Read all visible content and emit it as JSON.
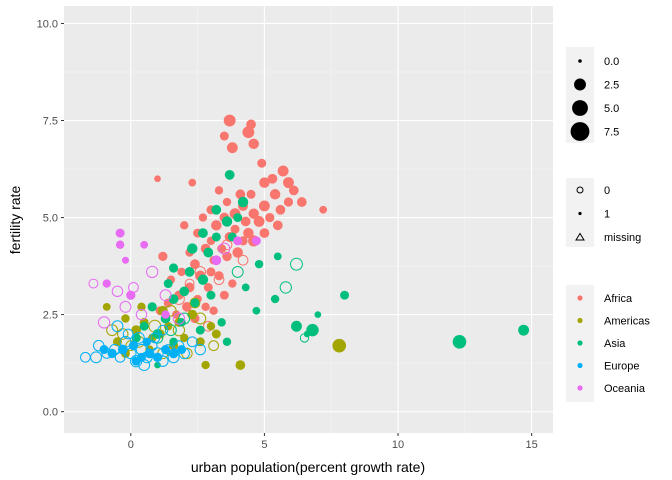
{
  "chart_data": {
    "type": "scatter",
    "title": "",
    "xlabel": "urban population(percent growth rate)",
    "ylabel": "fertility rate",
    "xlim": [
      -2.5,
      15.8
    ],
    "ylim": [
      -0.55,
      10.45
    ],
    "x_ticks": [
      0,
      5,
      10,
      15
    ],
    "x_tick_labels": [
      "0",
      "5",
      "10",
      "15"
    ],
    "y_ticks": [
      0,
      2.5,
      5,
      7.5,
      10
    ],
    "y_tick_labels": [
      "0.0",
      "2.5",
      "5.0",
      "7.5",
      "10.0"
    ],
    "grid": true,
    "legend_position": "right",
    "size_legend": {
      "breaks": [
        0,
        2.5,
        5,
        7.5
      ],
      "labels": [
        "0.0",
        "2.5",
        "5.0",
        "7.5"
      ]
    },
    "shape_legend": {
      "entries": [
        {
          "label": "0",
          "shape": "open-circle"
        },
        {
          "label": "1",
          "shape": "filled-circle"
        },
        {
          "label": "missing",
          "shape": "open-triangle"
        }
      ]
    },
    "color_legend": {
      "entries": [
        {
          "label": "Africa",
          "color": "#F8766D"
        },
        {
          "label": "Americas",
          "color": "#A3A500"
        },
        {
          "label": "Asia",
          "color": "#00BF7D"
        },
        {
          "label": "Europe",
          "color": "#00B0F6"
        },
        {
          "label": "Oceania",
          "color": "#E76BF3"
        }
      ]
    },
    "points_columns": [
      "x",
      "y",
      "region_index",
      "shape_index",
      "size_value"
    ],
    "points": [
      [
        3.7,
        7.5,
        0,
        1,
        2.5
      ],
      [
        4.5,
        7.4,
        0,
        1,
        1.5
      ],
      [
        4.4,
        7.2,
        0,
        1,
        2.5
      ],
      [
        3.5,
        7.1,
        0,
        1,
        1.2
      ],
      [
        3.8,
        6.8,
        0,
        1,
        2.0
      ],
      [
        4.6,
        6.9,
        0,
        1,
        1.8
      ],
      [
        4.9,
        6.4,
        0,
        1,
        1.2
      ],
      [
        5.3,
        6.0,
        0,
        1,
        1.5
      ],
      [
        5.7,
        6.2,
        0,
        1,
        2.0
      ],
      [
        6.1,
        5.7,
        0,
        1,
        1.5
      ],
      [
        5.0,
        5.9,
        0,
        1,
        1.8
      ],
      [
        2.3,
        5.9,
        0,
        1,
        0.8
      ],
      [
        3.3,
        5.7,
        0,
        1,
        1.0
      ],
      [
        4.1,
        5.6,
        0,
        1,
        1.5
      ],
      [
        4.5,
        5.6,
        0,
        1,
        1.2
      ],
      [
        5.4,
        5.6,
        0,
        1,
        1.8
      ],
      [
        5.9,
        5.4,
        0,
        1,
        1.3
      ],
      [
        3.6,
        5.4,
        0,
        1,
        1.0
      ],
      [
        4.2,
        5.3,
        0,
        1,
        1.6
      ],
      [
        5.0,
        5.3,
        0,
        1,
        2.0
      ],
      [
        5.6,
        5.2,
        0,
        1,
        1.5
      ],
      [
        3.0,
        5.2,
        0,
        1,
        1.2
      ],
      [
        3.9,
        5.1,
        0,
        1,
        2.0
      ],
      [
        4.6,
        5.1,
        0,
        1,
        1.8
      ],
      [
        5.2,
        5.0,
        0,
        1,
        1.3
      ],
      [
        2.7,
        5.0,
        0,
        1,
        1.0
      ],
      [
        3.5,
        5.0,
        0,
        1,
        1.5
      ],
      [
        4.3,
        4.9,
        0,
        1,
        1.5
      ],
      [
        4.8,
        4.9,
        0,
        1,
        2.0
      ],
      [
        5.5,
        4.8,
        0,
        1,
        1.5
      ],
      [
        2.0,
        4.8,
        0,
        1,
        1.0
      ],
      [
        3.2,
        4.8,
        0,
        1,
        1.8
      ],
      [
        3.9,
        4.7,
        0,
        1,
        1.2
      ],
      [
        4.4,
        4.6,
        0,
        1,
        1.8
      ],
      [
        5.0,
        4.6,
        0,
        1,
        1.5
      ],
      [
        2.5,
        4.6,
        0,
        1,
        1.2
      ],
      [
        3.7,
        4.5,
        0,
        1,
        1.6
      ],
      [
        4.2,
        4.4,
        0,
        1,
        1.3
      ],
      [
        3.0,
        4.4,
        0,
        1,
        1.0
      ],
      [
        4.6,
        4.4,
        0,
        1,
        2.2
      ],
      [
        2.8,
        4.2,
        0,
        1,
        1.5
      ],
      [
        3.4,
        4.2,
        0,
        1,
        1.2
      ],
      [
        4.0,
        4.1,
        0,
        1,
        1.8
      ],
      [
        2.2,
        4.1,
        0,
        1,
        1.0
      ],
      [
        3.6,
        4.0,
        0,
        1,
        1.4
      ],
      [
        3.1,
        3.9,
        0,
        1,
        1.0
      ],
      [
        1.2,
        4.0,
        0,
        1,
        1.3
      ],
      [
        2.4,
        3.8,
        0,
        1,
        1.5
      ],
      [
        3.0,
        3.6,
        0,
        1,
        1.2
      ],
      [
        1.9,
        3.6,
        0,
        1,
        1.0
      ],
      [
        2.6,
        3.5,
        0,
        1,
        1.8
      ],
      [
        3.3,
        3.5,
        0,
        1,
        1.3
      ],
      [
        1.5,
        3.4,
        0,
        1,
        1.0
      ],
      [
        2.2,
        3.2,
        0,
        1,
        1.5
      ],
      [
        2.9,
        3.2,
        0,
        1,
        1.2
      ],
      [
        1.8,
        3.0,
        0,
        1,
        1.3
      ],
      [
        2.5,
        2.9,
        0,
        1,
        1.0
      ],
      [
        1.4,
        2.8,
        0,
        1,
        1.2
      ],
      [
        2.1,
        2.7,
        0,
        1,
        1.5
      ],
      [
        2.8,
        2.7,
        0,
        1,
        1.0
      ],
      [
        1.1,
        2.6,
        0,
        1,
        1.2
      ],
      [
        1.7,
        2.5,
        0,
        1,
        1.0
      ],
      [
        2.4,
        2.4,
        0,
        1,
        1.3
      ],
      [
        3.1,
        2.6,
        0,
        1,
        1.0
      ],
      [
        5.9,
        5.9,
        0,
        1,
        2.0
      ],
      [
        6.4,
        5.4,
        0,
        1,
        1.5
      ],
      [
        7.2,
        5.2,
        0,
        1,
        0.8
      ],
      [
        1.0,
        6.0,
        0,
        1,
        0.5
      ],
      [
        3.5,
        3.0,
        0,
        1,
        1.2
      ],
      [
        3.8,
        3.3,
        0,
        1,
        1.0
      ],
      [
        2.6,
        3.6,
        0,
        0,
        1.8
      ],
      [
        3.3,
        3.4,
        0,
        0,
        1.5
      ],
      [
        1.8,
        2.9,
        0,
        0,
        2.0
      ],
      [
        2.9,
        2.2,
        0,
        0,
        1.5
      ],
      [
        3.6,
        4.3,
        0,
        0,
        1.5
      ],
      [
        4.2,
        3.9,
        0,
        0,
        1.5
      ],
      [
        2.2,
        3.3,
        0,
        0,
        1.2
      ],
      [
        4.1,
        1.2,
        1,
        1,
        1.5
      ],
      [
        7.8,
        1.7,
        1,
        1,
        3.5
      ],
      [
        3.2,
        2.0,
        1,
        1,
        1.2
      ],
      [
        2.8,
        1.2,
        1,
        1,
        1.0
      ],
      [
        2.3,
        2.5,
        1,
        1,
        1.5
      ],
      [
        1.8,
        2.3,
        1,
        1,
        1.2
      ],
      [
        1.4,
        2.2,
        1,
        1,
        1.0
      ],
      [
        1.1,
        2.0,
        1,
        1,
        1.3
      ],
      [
        0.8,
        1.9,
        1,
        1,
        1.0
      ],
      [
        0.5,
        2.3,
        1,
        1,
        1.2
      ],
      [
        0.2,
        2.1,
        1,
        1,
        1.5
      ],
      [
        -0.2,
        2.4,
        1,
        1,
        1.0
      ],
      [
        -0.5,
        1.8,
        1,
        1,
        1.2
      ],
      [
        -0.9,
        2.7,
        1,
        1,
        0.8
      ],
      [
        0.7,
        1.6,
        1,
        1,
        1.0
      ],
      [
        1.6,
        1.7,
        1,
        1,
        1.3
      ],
      [
        2.0,
        1.9,
        1,
        1,
        1.0
      ],
      [
        2.6,
        1.8,
        1,
        1,
        1.2
      ],
      [
        3.0,
        2.2,
        1,
        1,
        1.0
      ],
      [
        1.2,
        2.6,
        1,
        1,
        1.5
      ],
      [
        0.4,
        2.7,
        1,
        1,
        1.0
      ],
      [
        -0.2,
        1.5,
        1,
        1,
        1.2
      ],
      [
        2.6,
        2.4,
        1,
        0,
        2.0
      ],
      [
        1.8,
        2.1,
        1,
        0,
        2.2
      ],
      [
        0.9,
        2.2,
        1,
        0,
        2.5
      ],
      [
        0.3,
        1.8,
        1,
        0,
        2.0
      ],
      [
        -0.3,
        2.0,
        1,
        0,
        1.8
      ],
      [
        2.1,
        1.5,
        1,
        0,
        1.8
      ],
      [
        3.1,
        1.7,
        1,
        0,
        1.5
      ],
      [
        1.2,
        1.5,
        1,
        0,
        1.8
      ],
      [
        0.0,
        1.7,
        1,
        0,
        1.5
      ],
      [
        -0.7,
        2.1,
        1,
        0,
        2.0
      ],
      [
        2.4,
        2.8,
        1,
        0,
        1.5
      ],
      [
        1.5,
        2.6,
        1,
        0,
        1.8
      ],
      [
        12.3,
        1.8,
        2,
        1,
        3.5
      ],
      [
        14.7,
        2.1,
        2,
        1,
        2.0
      ],
      [
        8.0,
        3.0,
        2,
        1,
        1.2
      ],
      [
        6.8,
        2.1,
        2,
        1,
        2.8
      ],
      [
        6.2,
        2.2,
        2,
        1,
        2.0
      ],
      [
        7.0,
        2.5,
        2,
        1,
        0.5
      ],
      [
        5.4,
        2.9,
        2,
        1,
        1.0
      ],
      [
        4.7,
        2.6,
        2,
        1,
        0.8
      ],
      [
        3.7,
        6.1,
        2,
        1,
        1.5
      ],
      [
        4.2,
        5.4,
        2,
        1,
        1.8
      ],
      [
        3.2,
        5.2,
        2,
        1,
        1.5
      ],
      [
        4.0,
        5.0,
        2,
        1,
        1.2
      ],
      [
        3.6,
        4.9,
        2,
        1,
        1.8
      ],
      [
        2.7,
        4.6,
        2,
        1,
        1.5
      ],
      [
        3.2,
        4.5,
        2,
        1,
        1.2
      ],
      [
        2.3,
        4.2,
        2,
        1,
        1.8
      ],
      [
        3.8,
        4.5,
        2,
        1,
        1.2
      ],
      [
        2.9,
        4.1,
        2,
        1,
        1.5
      ],
      [
        1.6,
        3.7,
        2,
        1,
        1.3
      ],
      [
        2.2,
        3.6,
        2,
        1,
        1.5
      ],
      [
        2.7,
        3.4,
        2,
        1,
        1.8
      ],
      [
        1.4,
        3.3,
        2,
        1,
        1.2
      ],
      [
        2.0,
        3.1,
        2,
        1,
        1.5
      ],
      [
        3.0,
        3.0,
        2,
        1,
        1.2
      ],
      [
        1.6,
        2.9,
        2,
        1,
        1.5
      ],
      [
        2.4,
        2.8,
        2,
        1,
        1.2
      ],
      [
        0.8,
        2.7,
        2,
        1,
        1.3
      ],
      [
        1.3,
        2.4,
        2,
        1,
        1.5
      ],
      [
        1.9,
        2.3,
        2,
        1,
        1.0
      ],
      [
        0.5,
        2.2,
        2,
        1,
        1.2
      ],
      [
        1.0,
        2.0,
        2,
        1,
        1.5
      ],
      [
        2.6,
        2.1,
        2,
        1,
        1.2
      ],
      [
        3.4,
        2.3,
        2,
        1,
        1.0
      ],
      [
        0.2,
        1.9,
        2,
        1,
        1.3
      ],
      [
        1.6,
        1.8,
        2,
        1,
        1.0
      ],
      [
        0.7,
        1.5,
        2,
        1,
        1.2
      ],
      [
        3.6,
        1.8,
        2,
        1,
        1.0
      ],
      [
        4.3,
        3.2,
        2,
        1,
        0.8
      ],
      [
        6.6,
        2.0,
        2,
        1,
        0.5
      ],
      [
        4.8,
        3.8,
        2,
        1,
        1.0
      ],
      [
        5.5,
        4.0,
        2,
        1,
        0.8
      ],
      [
        1.0,
        1.2,
        2,
        1,
        0.5
      ],
      [
        6.2,
        3.8,
        2,
        0,
        2.5
      ],
      [
        5.8,
        3.2,
        2,
        0,
        2.2
      ],
      [
        4.0,
        3.6,
        2,
        0,
        2.0
      ],
      [
        6.5,
        1.9,
        2,
        0,
        1.0
      ],
      [
        2.0,
        2.4,
        2,
        0,
        2.0
      ],
      [
        1.0,
        1.9,
        2,
        0,
        1.8
      ],
      [
        1.5,
        2.1,
        2,
        0,
        2.0
      ],
      [
        -1.7,
        1.4,
        3,
        0,
        1.5
      ],
      [
        -1.3,
        1.4,
        3,
        0,
        2.0
      ],
      [
        -1.2,
        1.7,
        3,
        0,
        1.8
      ],
      [
        -0.9,
        1.5,
        3,
        0,
        1.5
      ],
      [
        -0.6,
        1.6,
        3,
        0,
        1.8
      ],
      [
        -0.4,
        1.4,
        3,
        0,
        1.5
      ],
      [
        -0.2,
        1.8,
        3,
        0,
        2.0
      ],
      [
        0.0,
        1.5,
        3,
        0,
        1.8
      ],
      [
        0.2,
        1.3,
        3,
        0,
        2.2
      ],
      [
        0.4,
        1.6,
        3,
        0,
        1.8
      ],
      [
        0.6,
        1.4,
        3,
        0,
        2.0
      ],
      [
        0.8,
        1.7,
        3,
        0,
        1.5
      ],
      [
        1.0,
        1.5,
        3,
        0,
        2.2
      ],
      [
        1.2,
        1.3,
        3,
        0,
        1.8
      ],
      [
        1.4,
        1.6,
        3,
        0,
        1.5
      ],
      [
        1.6,
        1.4,
        3,
        0,
        2.0
      ],
      [
        1.8,
        1.7,
        3,
        0,
        1.5
      ],
      [
        2.0,
        1.5,
        3,
        0,
        1.8
      ],
      [
        2.3,
        1.8,
        3,
        0,
        1.5
      ],
      [
        2.6,
        1.6,
        3,
        0,
        1.8
      ],
      [
        -0.5,
        2.2,
        3,
        0,
        2.0
      ],
      [
        -0.1,
        2.0,
        3,
        0,
        1.5
      ],
      [
        0.3,
        1.9,
        3,
        0,
        2.0
      ],
      [
        1.2,
        2.1,
        3,
        0,
        1.5
      ],
      [
        0.5,
        1.2,
        3,
        0,
        2.0
      ],
      [
        0.9,
        1.9,
        3,
        0,
        1.5
      ],
      [
        -1.0,
        1.6,
        3,
        1,
        1.2
      ],
      [
        -0.3,
        1.6,
        3,
        1,
        1.5
      ],
      [
        0.1,
        1.7,
        3,
        1,
        1.3
      ],
      [
        0.4,
        1.4,
        3,
        1,
        1.2
      ],
      [
        0.7,
        1.5,
        3,
        1,
        1.5
      ],
      [
        1.0,
        1.4,
        3,
        1,
        1.3
      ],
      [
        1.3,
        1.6,
        3,
        1,
        1.2
      ],
      [
        1.6,
        1.5,
        3,
        1,
        1.5
      ],
      [
        0.2,
        1.3,
        3,
        1,
        1.2
      ],
      [
        0.6,
        1.8,
        3,
        1,
        1.0
      ],
      [
        1.9,
        1.6,
        3,
        1,
        1.2
      ],
      [
        -0.7,
        1.5,
        3,
        1,
        1.3
      ],
      [
        -0.4,
        4.6,
        4,
        1,
        1.2
      ],
      [
        -0.4,
        4.3,
        4,
        1,
        1.0
      ],
      [
        -0.2,
        3.9,
        4,
        1,
        0.6
      ],
      [
        0.5,
        4.3,
        4,
        1,
        0.8
      ],
      [
        0.0,
        3.0,
        4,
        1,
        1.3
      ],
      [
        3.2,
        3.9,
        4,
        1,
        1.5
      ],
      [
        4.0,
        4.4,
        4,
        1,
        1.2
      ],
      [
        4.7,
        4.4,
        4,
        1,
        1.2
      ],
      [
        -0.9,
        3.3,
        4,
        1,
        1.0
      ],
      [
        1.3,
        2.5,
        4,
        1,
        1.0
      ],
      [
        -1.4,
        3.3,
        4,
        0,
        1.2
      ],
      [
        -0.5,
        3.1,
        4,
        0,
        1.8
      ],
      [
        0.1,
        3.2,
        4,
        0,
        1.5
      ],
      [
        0.8,
        3.6,
        4,
        0,
        2.2
      ],
      [
        1.3,
        3.0,
        4,
        0,
        2.0
      ],
      [
        -0.2,
        2.7,
        4,
        0,
        2.0
      ],
      [
        1.8,
        2.4,
        4,
        0,
        2.2
      ],
      [
        0.4,
        2.5,
        4,
        0,
        1.8
      ],
      [
        3.5,
        4.2,
        4,
        0,
        2.0
      ],
      [
        -1.0,
        2.3,
        4,
        0,
        2.2
      ]
    ]
  }
}
